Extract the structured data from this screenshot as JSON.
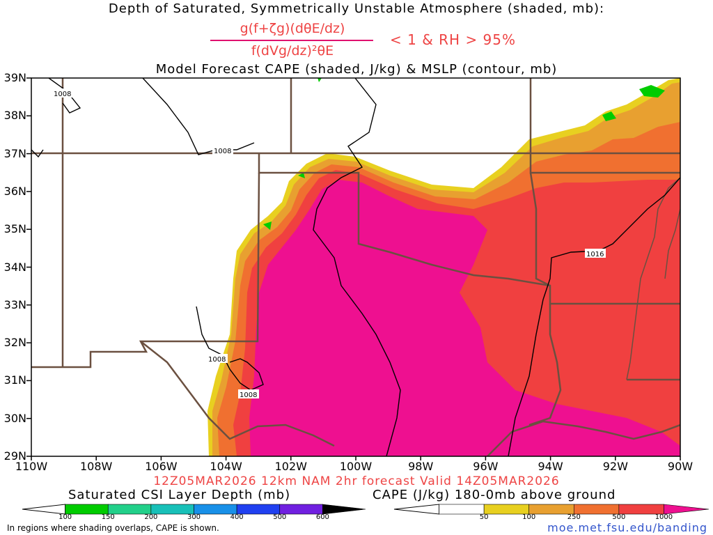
{
  "title_line1": "Depth of Saturated, Symmetrically Unstable Atmosphere (shaded, mb):",
  "formula": {
    "numerator": "g(f+ζg)(dθE/dz)",
    "denominator": "f(dVg/dz)²θE",
    "condition": "< 1 & RH > 95%"
  },
  "title_line3": "Model Forecast CAPE (shaded, J/kg) & MSLP (contour, mb)",
  "valid_line": "12Z05MAR2026 12km NAM 2hr forecast Valid 14Z05MAR2026",
  "lat_labels": [
    "39N",
    "38N",
    "37N",
    "36N",
    "35N",
    "34N",
    "33N",
    "32N",
    "31N",
    "30N",
    "29N"
  ],
  "lon_labels": [
    "110W",
    "108W",
    "106W",
    "104W",
    "102W",
    "100W",
    "98W",
    "96W",
    "94W",
    "92W",
    "90W"
  ],
  "contour_labels": [
    "1008",
    "1008",
    "1008",
    "1008",
    "1016"
  ],
  "csi_colorbar": {
    "title": "Saturated CSI Layer Depth (mb)",
    "ticks": [
      "100",
      "150",
      "200",
      "300",
      "400",
      "500",
      "600"
    ],
    "colors": [
      "#00cc00",
      "#22d08a",
      "#18c0b8",
      "#1890e8",
      "#2040f0",
      "#7020e0",
      "#000000"
    ]
  },
  "cape_colorbar": {
    "title": "CAPE (J/kg) 180-0mb above ground",
    "ticks": [
      "50",
      "100",
      "250",
      "500",
      "1000"
    ],
    "colors": [
      "#ffffff",
      "#e8d020",
      "#e8a030",
      "#f07030",
      "#f04040",
      "#ee1090"
    ]
  },
  "footnote": "In regions where shading overlaps, CAPE is shown.",
  "site": "moe.met.fsu.edu/banding"
}
